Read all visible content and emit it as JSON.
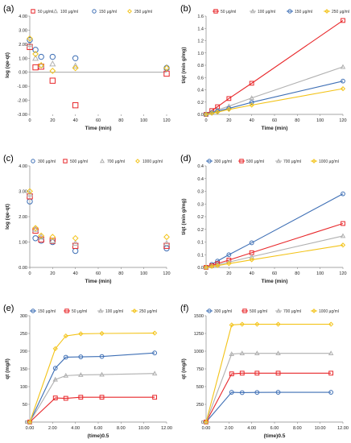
{
  "chart_data": [
    {
      "panel": "(a)",
      "type": "scatter",
      "title": "",
      "xlabel": "Time (min)",
      "ylabel": "log (qe-qt)",
      "xlim": [
        0,
        120
      ],
      "ylim": [
        -3,
        4
      ],
      "xticks": [
        "0",
        "20",
        "40",
        "60",
        "80",
        "100",
        "120"
      ],
      "yticks": [
        "-3.00",
        "-2.00",
        "-1.00",
        "0.00",
        "1.00",
        "2.00",
        "3.00",
        "4.00"
      ],
      "legend_position": "top",
      "series": [
        {
          "name": "50  μg/ml",
          "color": "#e8272a",
          "marker": "square",
          "x": [
            0,
            5,
            10,
            20,
            40,
            120
          ],
          "y": [
            1.8,
            0.35,
            0.4,
            -0.6,
            -2.35,
            -0.1
          ]
        },
        {
          "name": "100  μg/ml",
          "color": "#b0b0b0",
          "marker": "triangle",
          "x": [
            0,
            5,
            10,
            20,
            40,
            120
          ],
          "y": [
            2.0,
            1.0,
            0.5,
            0.6,
            0.45,
            0.35
          ]
        },
        {
          "name": "150  μg/ml",
          "color": "#3e6fb5",
          "marker": "circle",
          "x": [
            0,
            5,
            10,
            20,
            40,
            120
          ],
          "y": [
            2.3,
            1.6,
            1.1,
            1.1,
            1.0,
            0.3
          ]
        },
        {
          "name": "250  μg/ml",
          "color": "#f3c318",
          "marker": "diamond",
          "x": [
            0,
            5,
            10,
            20,
            40,
            120
          ],
          "y": [
            2.4,
            1.3,
            0.5,
            0.1,
            0.3,
            0.3
          ]
        }
      ]
    },
    {
      "panel": "(b)",
      "type": "line",
      "title": "",
      "xlabel": "Time (min)",
      "ylabel": "t/qt (min g/mg)",
      "xlim": [
        0,
        120
      ],
      "ylim": [
        0,
        1.8
      ],
      "xticks": [
        "0",
        "20",
        "40",
        "60",
        "80",
        "100",
        "120"
      ],
      "yticks": [
        "0.0",
        "0.2",
        "0.4",
        "0.6",
        "0.8",
        "1.0",
        "1.2",
        "1.4",
        "1.6"
      ],
      "legend_position": "top",
      "series": [
        {
          "name": "50  μg/ml",
          "color": "#e8272a",
          "marker": "square",
          "x": [
            0,
            5,
            10,
            20,
            40,
            120
          ],
          "y": [
            0.0,
            0.07,
            0.14,
            0.29,
            0.57,
            1.72
          ]
        },
        {
          "name": "100  μg/ml",
          "color": "#b0b0b0",
          "marker": "triangle",
          "x": [
            0,
            5,
            10,
            20,
            40,
            120
          ],
          "y": [
            0.0,
            0.04,
            0.08,
            0.15,
            0.3,
            0.87
          ]
        },
        {
          "name": "150  μg/ml",
          "color": "#3e6fb5",
          "marker": "circle",
          "x": [
            0,
            5,
            10,
            20,
            40,
            120
          ],
          "y": [
            0.0,
            0.03,
            0.06,
            0.11,
            0.22,
            0.61
          ]
        },
        {
          "name": "250  μg/ml",
          "color": "#f3c318",
          "marker": "diamond",
          "x": [
            0,
            5,
            10,
            20,
            40,
            120
          ],
          "y": [
            0.0,
            0.02,
            0.04,
            0.09,
            0.17,
            0.47
          ]
        }
      ]
    },
    {
      "panel": "(c)",
      "type": "scatter",
      "title": "",
      "xlabel": "Time (min)",
      "ylabel": "log (qe-qt)",
      "xlim": [
        0,
        120
      ],
      "ylim": [
        0,
        4
      ],
      "xticks": [
        "0",
        "20",
        "40",
        "60",
        "80",
        "100",
        "120"
      ],
      "yticks": [
        "0.00",
        "1.00",
        "2.00",
        "3.00",
        "4.00"
      ],
      "legend_position": "top",
      "series": [
        {
          "name": "300  μg/ml",
          "color": "#3e6fb5",
          "marker": "circle",
          "x": [
            0,
            5,
            10,
            20,
            40,
            120
          ],
          "y": [
            2.6,
            1.15,
            1.05,
            1.0,
            0.65,
            0.75
          ]
        },
        {
          "name": "500  μg/ml",
          "color": "#e8272a",
          "marker": "square",
          "x": [
            0,
            5,
            10,
            20,
            40,
            120
          ],
          "y": [
            2.8,
            1.45,
            1.1,
            1.05,
            0.85,
            0.85
          ]
        },
        {
          "name": "700  μg/ml",
          "color": "#b0b0b0",
          "marker": "triangle",
          "x": [
            0,
            5,
            10,
            20,
            40,
            120
          ],
          "y": [
            2.9,
            1.5,
            1.2,
            1.05,
            0.95,
            0.95
          ]
        },
        {
          "name": "1000  μg/ml",
          "color": "#f3c318",
          "marker": "diamond",
          "x": [
            0,
            5,
            10,
            20,
            40,
            120
          ],
          "y": [
            3.0,
            1.55,
            1.25,
            1.2,
            1.15,
            1.2
          ]
        }
      ]
    },
    {
      "panel": "(d)",
      "type": "line",
      "title": "",
      "xlabel": "Time (min)",
      "ylabel": "t/qt (min g/mg)",
      "xlim": [
        0,
        120
      ],
      "ylim": [
        0,
        0.4
      ],
      "xticks": [
        "0",
        "20",
        "40",
        "60",
        "80",
        "100",
        "120"
      ],
      "yticks": [
        "0.0",
        "0.1",
        "0.1",
        "0.2",
        "0.2",
        "0.3",
        "0.3",
        "0.4",
        "0.4"
      ],
      "legend_position": "top",
      "series": [
        {
          "name": "300  μg/ml",
          "color": "#3e6fb5",
          "marker": "circle",
          "x": [
            0,
            5,
            10,
            20,
            40,
            120
          ],
          "y": [
            0.0,
            0.012,
            0.025,
            0.05,
            0.097,
            0.29
          ]
        },
        {
          "name": "500  μg/ml",
          "color": "#e8272a",
          "marker": "square",
          "x": [
            0,
            5,
            10,
            20,
            40,
            120
          ],
          "y": [
            0.0,
            0.007,
            0.015,
            0.029,
            0.058,
            0.173
          ]
        },
        {
          "name": "700  μg/ml",
          "color": "#b0b0b0",
          "marker": "triangle",
          "x": [
            0,
            5,
            10,
            20,
            40,
            120
          ],
          "y": [
            0.0,
            0.005,
            0.01,
            0.021,
            0.042,
            0.124
          ]
        },
        {
          "name": "1000  μg/ml",
          "color": "#f3c318",
          "marker": "diamond",
          "x": [
            0,
            5,
            10,
            20,
            40,
            120
          ],
          "y": [
            0.0,
            0.004,
            0.007,
            0.015,
            0.03,
            0.088
          ]
        }
      ]
    },
    {
      "panel": "(e)",
      "type": "line",
      "title": "",
      "xlabel": "(time)0.5",
      "ylabel": "qt (mg/l)",
      "xlim": [
        0,
        12
      ],
      "ylim": [
        0,
        300
      ],
      "xticks": [
        "0.00",
        "2.00",
        "4.00",
        "6.00",
        "8.00",
        "10.00",
        "12.00"
      ],
      "yticks": [
        "0",
        "50",
        "100",
        "150",
        "200",
        "250",
        "300"
      ],
      "legend_position": "top",
      "series": [
        {
          "name": "150  μg/ml",
          "color": "#3e6fb5",
          "marker": "circle",
          "x": [
            0,
            2.24,
            3.16,
            4.47,
            6.32,
            10.95
          ],
          "y": [
            0,
            152,
            183,
            184,
            185,
            195
          ]
        },
        {
          "name": "50  μg/ml",
          "color": "#e8272a",
          "marker": "square",
          "x": [
            0,
            2.24,
            3.16,
            4.47,
            6.32,
            10.95
          ],
          "y": [
            0,
            68,
            67,
            70,
            70,
            70
          ]
        },
        {
          "name": "100  μg/ml",
          "color": "#b0b0b0",
          "marker": "triangle",
          "x": [
            0,
            2.24,
            3.16,
            4.47,
            6.32,
            10.95
          ],
          "y": [
            0,
            120,
            131,
            133,
            134,
            137
          ]
        },
        {
          "name": "250  μg/ml",
          "color": "#f3c318",
          "marker": "diamond",
          "x": [
            0,
            2.24,
            3.16,
            4.47,
            6.32,
            10.95
          ],
          "y": [
            0,
            207,
            243,
            249,
            250,
            251
          ]
        }
      ]
    },
    {
      "panel": "(f)",
      "type": "line",
      "title": "",
      "xlabel": "(time)0.5",
      "ylabel": "qt (mg/l)",
      "xlim": [
        0,
        12
      ],
      "ylim": [
        0,
        1500
      ],
      "xticks": [
        "0.00",
        "2.00",
        "4.00",
        "6.00",
        "8.00",
        "10.00",
        "12.00"
      ],
      "yticks": [
        "0",
        "250",
        "500",
        "750",
        "1000",
        "1250",
        "1500"
      ],
      "legend_position": "top",
      "series": [
        {
          "name": "300  μg/ml",
          "color": "#3e6fb5",
          "marker": "circle",
          "x": [
            0,
            2.24,
            3.16,
            4.47,
            6.32,
            10.95
          ],
          "y": [
            0,
            420,
            415,
            418,
            420,
            420
          ]
        },
        {
          "name": "500  μg/ml",
          "color": "#e8272a",
          "marker": "square",
          "x": [
            0,
            2.24,
            3.16,
            4.47,
            6.32,
            10.95
          ],
          "y": [
            0,
            680,
            690,
            690,
            690,
            690
          ]
        },
        {
          "name": "700  μg/ml",
          "color": "#b0b0b0",
          "marker": "triangle",
          "x": [
            0,
            2.24,
            3.16,
            4.47,
            6.32,
            10.95
          ],
          "y": [
            0,
            960,
            970,
            970,
            970,
            970
          ]
        },
        {
          "name": "1000  μg/ml",
          "color": "#f3c318",
          "marker": "diamond",
          "x": [
            0,
            2.24,
            3.16,
            4.47,
            6.32,
            10.95
          ],
          "y": [
            0,
            1370,
            1380,
            1380,
            1380,
            1380
          ]
        }
      ]
    }
  ]
}
